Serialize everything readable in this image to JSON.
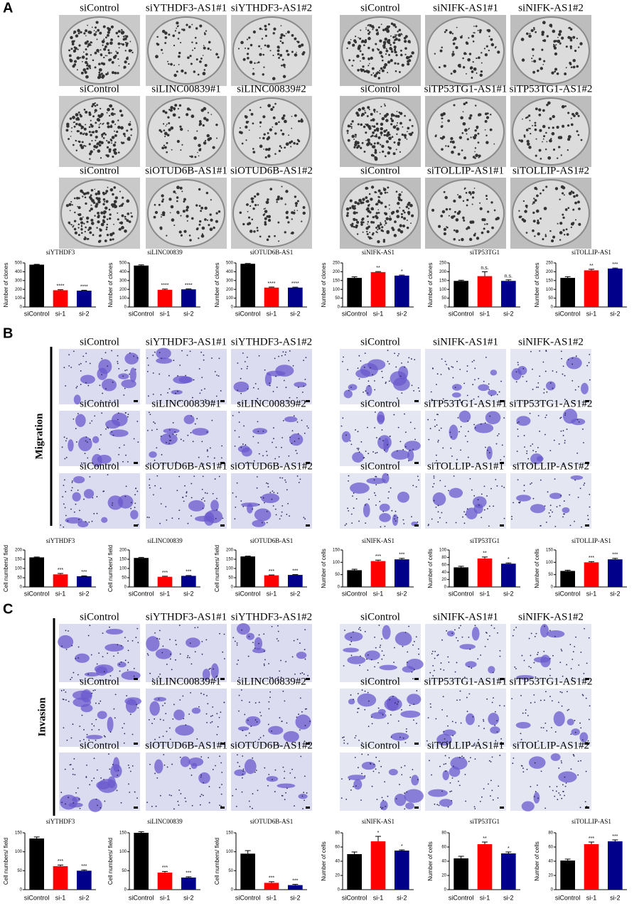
{
  "bar_colors": [
    "#000000",
    "#ff0000",
    "#00008b"
  ],
  "panels": [
    {
      "letter": "A",
      "image_labels": [
        [
          "siControl",
          "siYTHDF3-AS1#1",
          "siYTHDF3-AS1#2",
          "siControl",
          "siNIFK-AS1#1",
          "siNIFK-AS1#2"
        ],
        [
          "siControl",
          "siLINC00839#1",
          "siLINC00839#2",
          "siControl",
          "siTP53TG1-AS1#1",
          "siTP53TG1-AS1#2"
        ],
        [
          "siControl",
          "siOTUD6B-AS1#1",
          "siOTUD6B-AS1#2",
          "siControl",
          "siTOLLIP-AS1#1",
          "siTOLLIP-AS1#2"
        ]
      ],
      "charts": [
        {
          "type": "bar",
          "title": "siYTHDF3",
          "y_label": "Number of clones",
          "categories": [
            "siControl",
            "si-1",
            "si-2"
          ],
          "values": [
            480,
            190,
            185
          ],
          "errors": [
            4,
            6,
            5
          ],
          "significance": [
            "****",
            "****"
          ],
          "ylim": [
            0,
            500
          ],
          "yticks": [
            0,
            100,
            200,
            300,
            400,
            500
          ]
        },
        {
          "type": "bar",
          "title": "siLINC00839",
          "y_label": "Number of clones",
          "categories": [
            "siControl",
            "si-1",
            "si-2"
          ],
          "values": [
            470,
            195,
            200
          ],
          "errors": [
            8,
            8,
            5
          ],
          "significance": [
            "****",
            "****"
          ],
          "ylim": [
            0,
            500
          ],
          "yticks": [
            0,
            100,
            200,
            300,
            400,
            500
          ]
        },
        {
          "type": "bar",
          "title": "siOTUD6B-AS1",
          "y_label": "Number of clones",
          "categories": [
            "siControl",
            "si-1",
            "si-2"
          ],
          "values": [
            490,
            220,
            220
          ],
          "errors": [
            4,
            6,
            5
          ],
          "significance": [
            "****",
            "****"
          ],
          "ylim": [
            0,
            500
          ],
          "yticks": [
            0,
            100,
            200,
            300,
            400,
            500
          ]
        },
        {
          "type": "bar",
          "title": "siNIFK-AS1",
          "y_label": "Number of clones",
          "categories": [
            "siControl",
            "si-1",
            "si-2"
          ],
          "values": [
            165,
            198,
            178
          ],
          "errors": [
            6,
            3,
            3
          ],
          "significance": [
            "**",
            "*"
          ],
          "ylim": [
            0,
            250
          ],
          "yticks": [
            0,
            50,
            100,
            150,
            200,
            250
          ]
        },
        {
          "type": "bar",
          "title": "siTP53TG1",
          "y_label": "Number of clones",
          "categories": [
            "siControl",
            "si-1",
            "si-2"
          ],
          "values": [
            148,
            175,
            148
          ],
          "errors": [
            4,
            25,
            6
          ],
          "significance": [
            "n.s.",
            "n.s."
          ],
          "ylim": [
            0,
            250
          ],
          "yticks": [
            0,
            50,
            100,
            150,
            200,
            250
          ]
        },
        {
          "type": "bar",
          "title": "siTOLLIP-AS1",
          "y_label": "Number of clones",
          "categories": [
            "siControl",
            "si-1",
            "si-2"
          ],
          "values": [
            165,
            208,
            218
          ],
          "errors": [
            7,
            6,
            3
          ],
          "significance": [
            "**",
            "***"
          ],
          "ylim": [
            0,
            250
          ],
          "yticks": [
            0,
            50,
            100,
            150,
            200,
            250
          ]
        }
      ]
    },
    {
      "letter": "B",
      "side_label": "Migration",
      "image_labels": [
        [
          "siControl",
          "siYTHDF3-AS1#1",
          "siYTHDF3-AS1#2",
          "siControl",
          "siNIFK-AS1#1",
          "siNIFK-AS1#2"
        ],
        [
          "siControl",
          "siLINC00839#1",
          "siLINC00839#2",
          "siControl",
          "siTP53TG1-AS1#1",
          "siTP53TG1-AS1#2"
        ],
        [
          "siControl",
          "siOTUD6B-AS1#1",
          "siOTUD6B-AS1#2",
          "siControl",
          "siTOLLIP-AS1#1",
          "siTOLLIP-AS1#2"
        ]
      ],
      "charts": [
        {
          "type": "bar",
          "title": "siYTHDF3",
          "y_label": "Cell numbers/ field",
          "categories": [
            "siControl",
            "si-1",
            "si-2"
          ],
          "values": [
            160,
            68,
            58
          ],
          "errors": [
            2,
            5,
            2
          ],
          "significance": [
            "***",
            "***"
          ],
          "ylim": [
            0,
            200
          ],
          "yticks": [
            0,
            50,
            100,
            150,
            200
          ]
        },
        {
          "type": "bar",
          "title": "siLINC00839",
          "y_label": "Cell numbers/ field",
          "categories": [
            "siControl",
            "si-1",
            "si-2"
          ],
          "values": [
            157,
            55,
            60
          ],
          "errors": [
            3,
            3,
            2
          ],
          "significance": [
            "***",
            "***"
          ],
          "ylim": [
            0,
            200
          ],
          "yticks": [
            0,
            50,
            100,
            150,
            200
          ]
        },
        {
          "type": "bar",
          "title": "siOTUD6B-AS1",
          "y_label": "Cell numbers/ field",
          "categories": [
            "siControl",
            "si-1",
            "si-2"
          ],
          "values": [
            165,
            63,
            65
          ],
          "errors": [
            2,
            2,
            2
          ],
          "significance": [
            "***",
            "***"
          ],
          "ylim": [
            0,
            200
          ],
          "yticks": [
            0,
            50,
            100,
            150,
            200
          ]
        },
        {
          "type": "bar",
          "title": "siNIFK-AS1",
          "y_label": "Number of cells",
          "categories": [
            "siControl",
            "si-1",
            "si-2"
          ],
          "values": [
            68,
            105,
            112
          ],
          "errors": [
            4,
            4,
            4
          ],
          "significance": [
            "***",
            "***"
          ],
          "ylim": [
            0,
            150
          ],
          "yticks": [
            0,
            50,
            100,
            150
          ]
        },
        {
          "type": "bar",
          "title": "siTP53TG1",
          "y_label": "Number of cells",
          "categories": [
            "siControl",
            "si-1",
            "si-2"
          ],
          "values": [
            53,
            77,
            63
          ],
          "errors": [
            3,
            4,
            2
          ],
          "significance": [
            "**",
            "*"
          ],
          "ylim": [
            0,
            100
          ],
          "yticks": [
            0,
            20,
            40,
            60,
            80,
            100
          ]
        },
        {
          "type": "bar",
          "title": "siTOLLIP-AS1",
          "y_label": "Number of cells",
          "categories": [
            "siControl",
            "si-1",
            "si-2"
          ],
          "values": [
            65,
            100,
            112
          ],
          "errors": [
            3,
            3,
            4
          ],
          "significance": [
            "***",
            "***"
          ],
          "ylim": [
            0,
            150
          ],
          "yticks": [
            0,
            50,
            100,
            150
          ]
        }
      ]
    },
    {
      "letter": "C",
      "side_label": "Invasion",
      "image_labels": [
        [
          "siControl",
          "siYTHDF3-AS1#1",
          "siYTHDF3-AS1#2",
          "siControl",
          "siNIFK-AS1#1",
          "siNIFK-AS1#2"
        ],
        [
          "siControl",
          "siLINC00839#1",
          "siLINC00839#2",
          "siControl",
          "siTP53TG1-AS1#1",
          "siTP53TG1-AS1#2"
        ],
        [
          "siControl",
          "siOTUD6B-AS1#1",
          "siOTUD6B-AS1#2",
          "siControl",
          "siTOLLIP-AS1#1",
          "siTOLLIP-AS1#2"
        ]
      ],
      "charts": [
        {
          "type": "bar",
          "title": "siYTHDF3",
          "y_label": "Cell numbers/ field",
          "categories": [
            "siControl",
            "si-1",
            "si-2"
          ],
          "values": [
            135,
            62,
            50
          ],
          "errors": [
            4,
            3,
            2
          ],
          "significance": [
            "***",
            "***"
          ],
          "ylim": [
            0,
            150
          ],
          "yticks": [
            0,
            50,
            100,
            150
          ]
        },
        {
          "type": "bar",
          "title": "siLINC00839",
          "y_label": "Cell numbers/ field",
          "categories": [
            "siControl",
            "si-1",
            "si-2"
          ],
          "values": [
            150,
            45,
            32
          ],
          "errors": [
            3,
            3,
            2
          ],
          "significance": [
            "***",
            "***"
          ],
          "ylim": [
            0,
            150
          ],
          "yticks": [
            0,
            50,
            100,
            150
          ]
        },
        {
          "type": "bar",
          "title": "siOTUD6B-AS1",
          "y_label": "Cell numbers/ field",
          "categories": [
            "siControl",
            "si-1",
            "si-2"
          ],
          "values": [
            95,
            18,
            12
          ],
          "errors": [
            8,
            3,
            2
          ],
          "significance": [
            "***",
            "***"
          ],
          "ylim": [
            0,
            150
          ],
          "yticks": [
            0,
            50,
            100,
            150
          ]
        },
        {
          "type": "bar",
          "title": "siNIFK-AS1",
          "y_label": "Number of cells",
          "categories": [
            "siControl",
            "si-1",
            "si-2"
          ],
          "values": [
            50,
            68,
            55
          ],
          "errors": [
            3,
            7,
            1
          ],
          "significance": [
            "*",
            "*"
          ],
          "ylim": [
            0,
            80
          ],
          "yticks": [
            0,
            20,
            40,
            60,
            80
          ]
        },
        {
          "type": "bar",
          "title": "siTP53TG1",
          "y_label": "Number of cells",
          "categories": [
            "siControl",
            "si-1",
            "si-2"
          ],
          "values": [
            44,
            64,
            51
          ],
          "errors": [
            3,
            3,
            2
          ],
          "significance": [
            "**",
            "*"
          ],
          "ylim": [
            0,
            80
          ],
          "yticks": [
            0,
            20,
            40,
            60,
            80
          ]
        },
        {
          "type": "bar",
          "title": "siTOLLIP-AS1",
          "y_label": "Number of cells",
          "categories": [
            "siControl",
            "si-1",
            "si-2"
          ],
          "values": [
            41,
            64,
            68
          ],
          "errors": [
            2,
            3,
            2
          ],
          "significance": [
            "***",
            "***"
          ],
          "ylim": [
            0,
            80
          ],
          "yticks": [
            0,
            20,
            40,
            60,
            80
          ]
        }
      ]
    }
  ]
}
